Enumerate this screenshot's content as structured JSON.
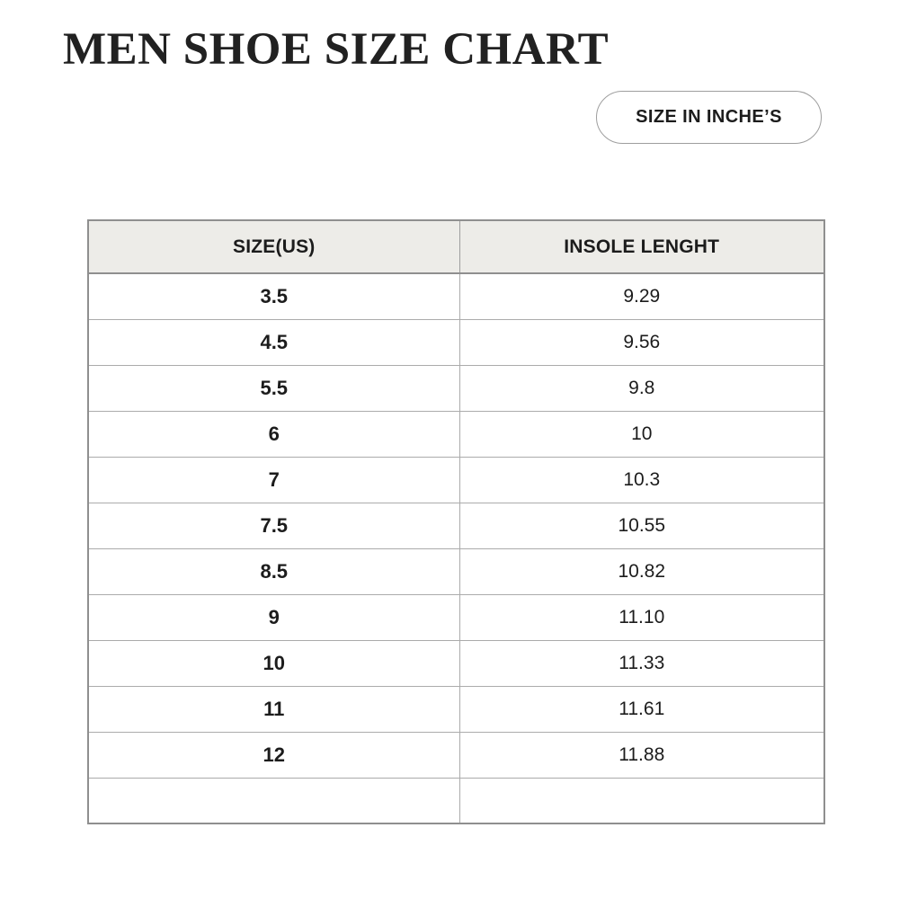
{
  "page": {
    "title": "MEN SHOE SIZE CHART",
    "badge_label": "SIZE IN INCHE’S"
  },
  "chart_data": {
    "type": "table",
    "title": "MEN SHOE SIZE CHART",
    "columns": [
      "SIZE(US)",
      "INSOLE LENGHT"
    ],
    "rows": [
      [
        "3.5",
        "9.29"
      ],
      [
        "4.5",
        "9.56"
      ],
      [
        "5.5",
        "9.8"
      ],
      [
        "6",
        "10"
      ],
      [
        "7",
        "10.3"
      ],
      [
        "7.5",
        "10.55"
      ],
      [
        "8.5",
        "10.82"
      ],
      [
        "9",
        "11.10"
      ],
      [
        "10",
        "11.33"
      ],
      [
        "11",
        "11.61"
      ],
      [
        "12",
        "11.88"
      ],
      [
        "",
        ""
      ]
    ]
  },
  "colors": {
    "header_bg": "#edece8",
    "outer_border": "#8f8f8f",
    "inner_border": "#ababab",
    "text": "#1c1c1c",
    "background": "#ffffff"
  }
}
